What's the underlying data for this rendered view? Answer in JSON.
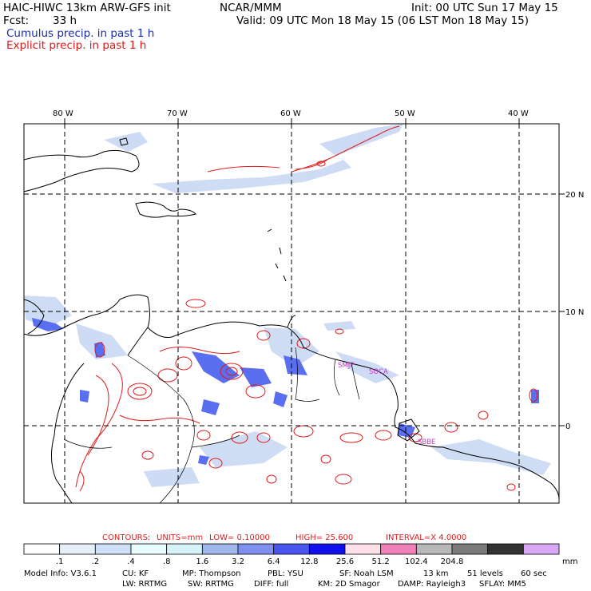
{
  "header": {
    "model_title": "HAIC-HIWC 13km ARW-GFS init",
    "org": "NCAR/MMM",
    "init": "Init: 00 UTC Sun 17 May 15",
    "fcst_label": "Fcst:",
    "fcst_value": "33 h",
    "valid": "Valid: 09 UTC Mon 18 May 15 (06 LST Mon 18 May 15)",
    "field1": "Cumulus precip. in past 1 h",
    "field2": "Explicit precip. in past 1 h"
  },
  "colors": {
    "cumulus": "#1b2ca8",
    "explicit": "#e01a1a",
    "coast": "#000000",
    "station": "#cc33cc"
  },
  "map": {
    "lon_labels": [
      "80 W",
      "70 W",
      "60 W",
      "50 W",
      "40 W"
    ],
    "lat_labels": [
      "20 N",
      "10 N",
      "0"
    ],
    "stations": [
      "SMJP",
      "SOCA",
      "SBBE"
    ]
  },
  "contour_info": {
    "label": "CONTOURS:",
    "units": "UNITS=mm",
    "low": "LOW= 0.10000",
    "high": "HIGH= 25.600",
    "interval": "INTERVAL=X 4.0000"
  },
  "colorbar": {
    "ticks": [
      ".1",
      ".2",
      ".4",
      ".8",
      "1.6",
      "3.2",
      "6.4",
      "12.8",
      "25.6",
      "51.2",
      "102.4",
      "204.8"
    ],
    "units": "mm",
    "colors": [
      "#ffffff",
      "#e6eef8",
      "#cde0f5",
      "#e8fbfd",
      "#d6f1f7",
      "#9fb6ea",
      "#7f8ff0",
      "#4a55f0",
      "#1010ee",
      "#ffe0e8",
      "#f080b8",
      "#b8b8b8",
      "#7a7a7a",
      "#333333",
      "#d8a8f4"
    ]
  },
  "footer": {
    "model_info": "Model Info: V3.6.1",
    "cu": "CU: KF",
    "mp": "MP: Thompson",
    "pbl": "PBL: YSU",
    "sf": "SF: Noah LSM",
    "res": "13 km",
    "levels": "51 levels",
    "dt": "60 sec",
    "lw": "LW: RRTMG",
    "sw": "SW: RRTMG",
    "diff": "DIFF: full",
    "km": "KM: 2D Smagor",
    "damp": "DAMP: Rayleigh3",
    "sflay": "SFLAY: MM5"
  }
}
